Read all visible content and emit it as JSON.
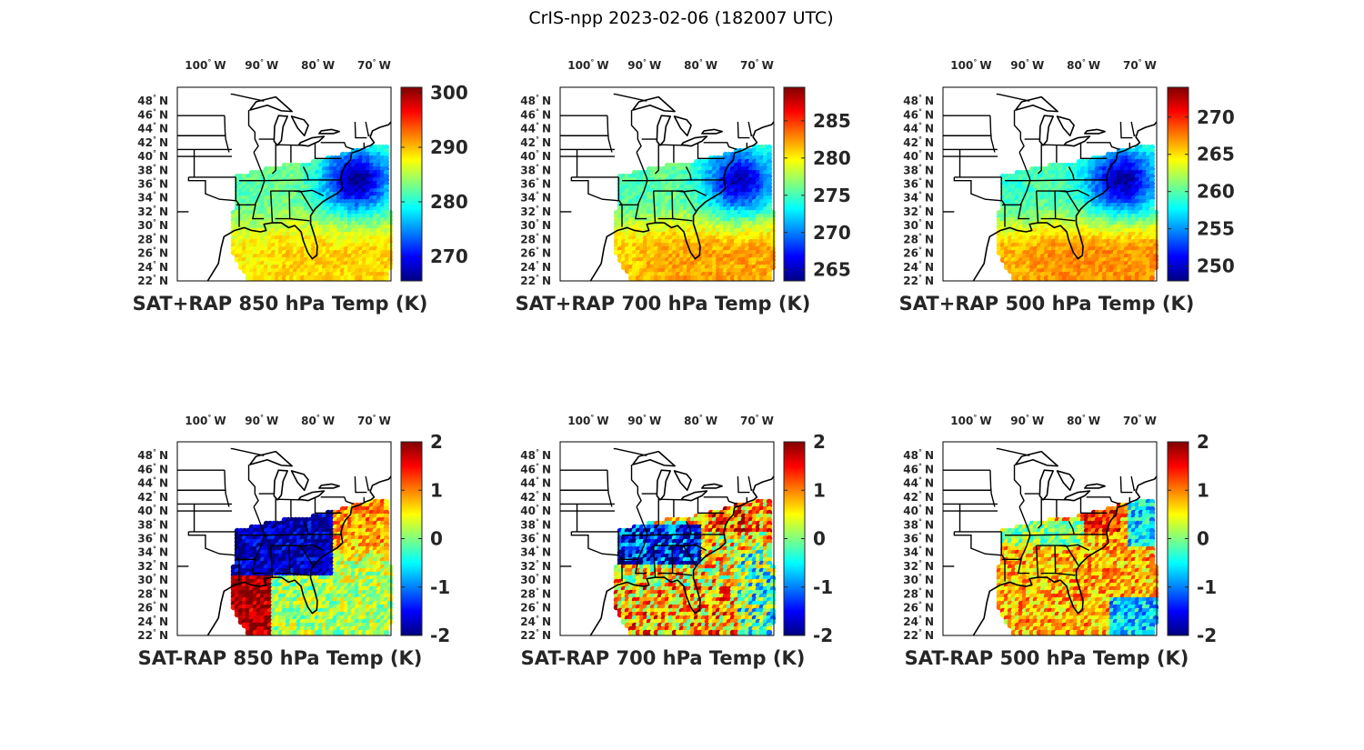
{
  "title": "CrIS-npp 2023-02-06 (182007 UTC)",
  "lon_labels": [
    {
      "lon": -100,
      "num": "100",
      "hemi": "W"
    },
    {
      "lon": -90,
      "num": "90",
      "hemi": "W"
    },
    {
      "lon": -80,
      "num": "80",
      "hemi": "W"
    },
    {
      "lon": -70,
      "num": "70",
      "hemi": "W"
    }
  ],
  "lat_labels": [
    {
      "lat": 48,
      "num": "48",
      "hemi": "N"
    },
    {
      "lat": 46,
      "num": "46",
      "hemi": "N"
    },
    {
      "lat": 44,
      "num": "44",
      "hemi": "N"
    },
    {
      "lat": 42,
      "num": "42",
      "hemi": "N"
    },
    {
      "lat": 40,
      "num": "40",
      "hemi": "N"
    },
    {
      "lat": 38,
      "num": "38",
      "hemi": "N"
    },
    {
      "lat": 36,
      "num": "36",
      "hemi": "N"
    },
    {
      "lat": 34,
      "num": "34",
      "hemi": "N"
    },
    {
      "lat": 32,
      "num": "32",
      "hemi": "N"
    },
    {
      "lat": 30,
      "num": "30",
      "hemi": "N"
    },
    {
      "lat": 28,
      "num": "28",
      "hemi": "N"
    },
    {
      "lat": 26,
      "num": "26",
      "hemi": "N"
    },
    {
      "lat": 24,
      "num": "24",
      "hemi": "N"
    },
    {
      "lat": 22,
      "num": "22",
      "hemi": "N"
    }
  ],
  "colormap": "jet",
  "chart_data": [
    {
      "type": "heatmap",
      "title": "SAT+RAP 850 hPa Temp (K)",
      "variable": "temperature_850hPa",
      "lon_range": [
        -105,
        -67
      ],
      "lat_range": [
        22,
        50
      ],
      "clim": [
        265.5,
        301
      ],
      "colorbar_ticks": [
        270,
        280,
        290,
        300
      ],
      "field": "sum",
      "field_params": {
        "cold_core": 266,
        "south_warm": 289,
        "west_warm": 283,
        "noise": 1.8
      }
    },
    {
      "type": "heatmap",
      "title": "SAT+RAP 700 hPa Temp (K)",
      "variable": "temperature_700hPa",
      "lon_range": [
        -105,
        -67
      ],
      "lat_range": [
        22,
        50
      ],
      "clim": [
        263.5,
        289.5
      ],
      "colorbar_ticks": [
        265,
        270,
        275,
        280,
        285
      ],
      "field": "sum",
      "field_params": {
        "cold_core": 265,
        "south_warm": 282,
        "west_warm": 276,
        "noise": 1.4
      }
    },
    {
      "type": "heatmap",
      "title": "SAT+RAP 500 hPa Temp (K)",
      "variable": "temperature_500hPa",
      "lon_range": [
        -105,
        -67
      ],
      "lat_range": [
        22,
        50
      ],
      "clim": [
        248,
        274
      ],
      "colorbar_ticks": [
        250,
        255,
        260,
        265,
        270
      ],
      "field": "sum",
      "field_params": {
        "cold_core": 249,
        "south_warm": 267,
        "west_warm": 260,
        "noise": 1.3
      }
    },
    {
      "type": "heatmap",
      "title": "SAT-RAP 850 hPa Temp (K)",
      "variable": "temperature_difference_850hPa",
      "lon_range": [
        -105,
        -67
      ],
      "lat_range": [
        22,
        50
      ],
      "clim": [
        -2,
        2
      ],
      "colorbar_ticks": [
        -2,
        -1,
        0,
        1,
        2
      ],
      "field": "diff850",
      "field_params": {
        "noise": 0.55
      }
    },
    {
      "type": "heatmap",
      "title": "SAT-RAP 700 hPa Temp (K)",
      "variable": "temperature_difference_700hPa",
      "lon_range": [
        -105,
        -67
      ],
      "lat_range": [
        22,
        50
      ],
      "clim": [
        -2,
        2
      ],
      "colorbar_ticks": [
        -2,
        -1,
        0,
        1,
        2
      ],
      "field": "diff700",
      "field_params": {
        "noise": 0.8
      }
    },
    {
      "type": "heatmap",
      "title": "SAT-RAP 500 hPa Temp (K)",
      "variable": "temperature_difference_500hPa",
      "lon_range": [
        -105,
        -67
      ],
      "lat_range": [
        22,
        50
      ],
      "clim": [
        -2,
        2
      ],
      "colorbar_ticks": [
        -2,
        -1,
        0,
        1,
        2
      ],
      "field": "diff500",
      "field_params": {
        "noise": 0.6
      }
    }
  ]
}
